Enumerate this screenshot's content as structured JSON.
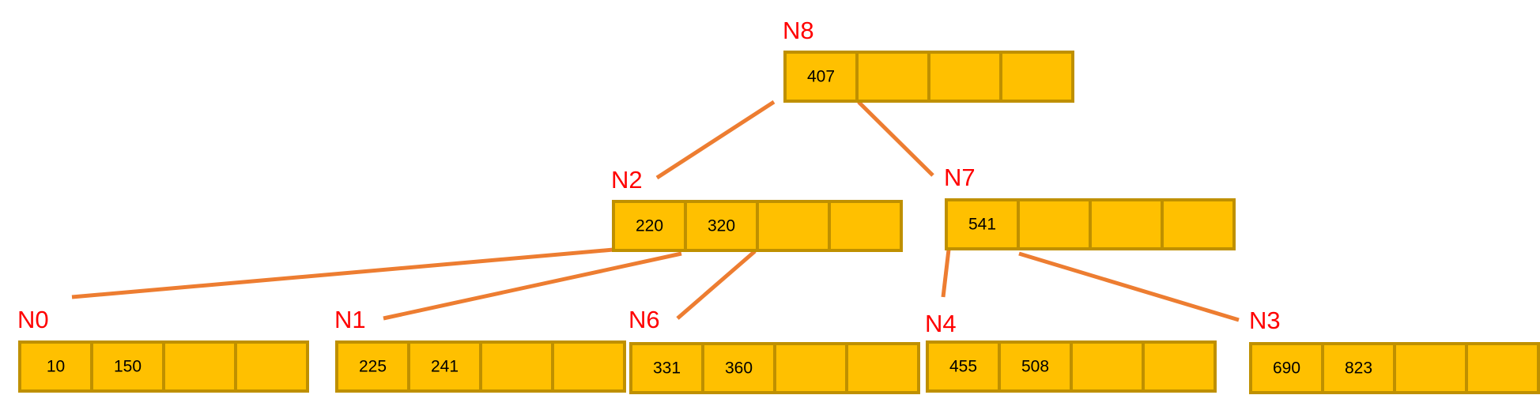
{
  "tree": {
    "nodes": [
      {
        "id": "N8",
        "label": "N8",
        "keys": [
          "407",
          "",
          "",
          ""
        ]
      },
      {
        "id": "N2",
        "label": "N2",
        "keys": [
          "220",
          "320",
          "",
          ""
        ]
      },
      {
        "id": "N7",
        "label": "N7",
        "keys": [
          "541",
          "",
          "",
          ""
        ]
      },
      {
        "id": "N0",
        "label": "N0",
        "keys": [
          "10",
          "150",
          "",
          ""
        ]
      },
      {
        "id": "N1",
        "label": "N1",
        "keys": [
          "225",
          "241",
          "",
          ""
        ]
      },
      {
        "id": "N6",
        "label": "N6",
        "keys": [
          "331",
          "360",
          "",
          ""
        ]
      },
      {
        "id": "N4",
        "label": "N4",
        "keys": [
          "455",
          "508",
          "",
          ""
        ]
      },
      {
        "id": "N3",
        "label": "N3",
        "keys": [
          "690",
          "823",
          "",
          ""
        ]
      }
    ],
    "edges": [
      {
        "from": "N8",
        "to": "N2"
      },
      {
        "from": "N8",
        "to": "N7"
      },
      {
        "from": "N2",
        "to": "N0"
      },
      {
        "from": "N2",
        "to": "N1"
      },
      {
        "from": "N2",
        "to": "N6"
      },
      {
        "from": "N7",
        "to": "N4"
      },
      {
        "from": "N7",
        "to": "N3"
      }
    ],
    "colors": {
      "cell_fill": "#FFC000",
      "cell_border": "#BF9000",
      "edge": "#ED7D31",
      "label": "#FF0000"
    }
  }
}
